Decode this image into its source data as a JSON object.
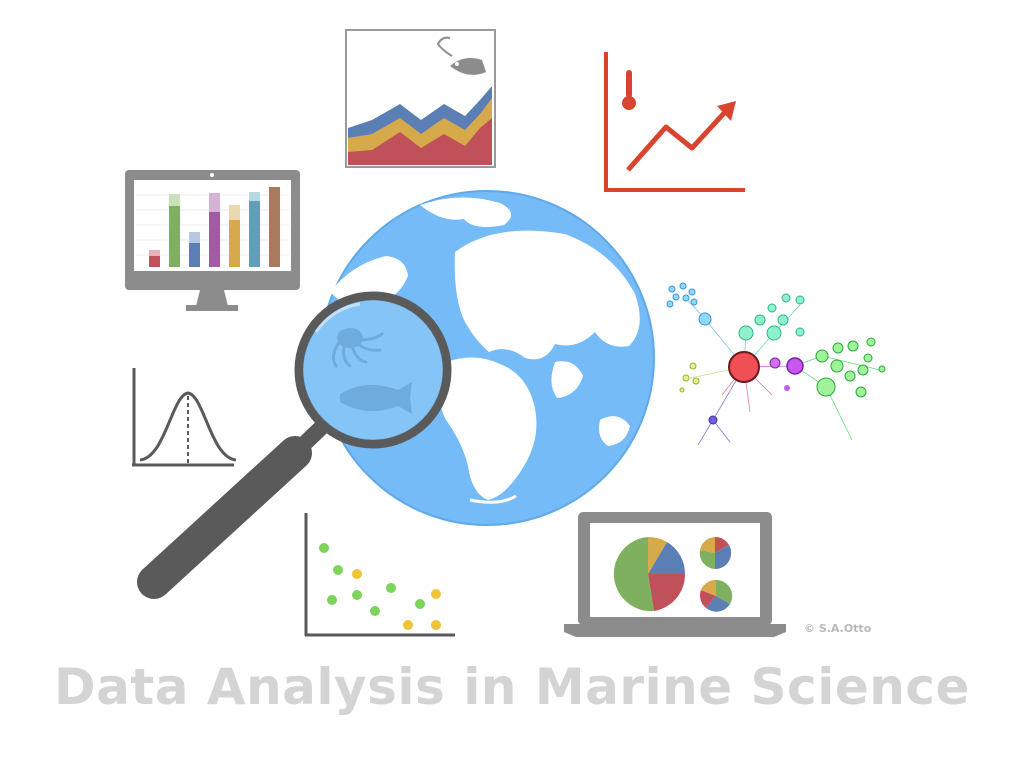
{
  "page": {
    "title": "Data Analysis in Marine Science",
    "credit": "© S.A.Otto"
  },
  "icons": [
    "stacked-area-fish-icon",
    "temperature-trend-icon",
    "monitor-bar-chart-icon",
    "globe-icon",
    "magnifying-glass-icon",
    "octopus-icon",
    "fish-icon",
    "network-graph-icon",
    "normal-distribution-icon",
    "scatter-plot-icon",
    "laptop-pie-chart-icon"
  ],
  "colors": {
    "globe_ocean": "#74bbf7",
    "globe_land": "#ffffff",
    "lens": "#8cc8f8",
    "frame_gray": "#8c8c8c",
    "handle_gray": "#5a5a5a",
    "red": "#c0505a",
    "blue": "#5b7fb5",
    "green": "#7fb060",
    "yellow": "#d6a94a",
    "purple": "#a25ba3",
    "brown": "#a97a5e",
    "trend_red": "#d9442e",
    "title_gray": "#d4d4d4"
  }
}
